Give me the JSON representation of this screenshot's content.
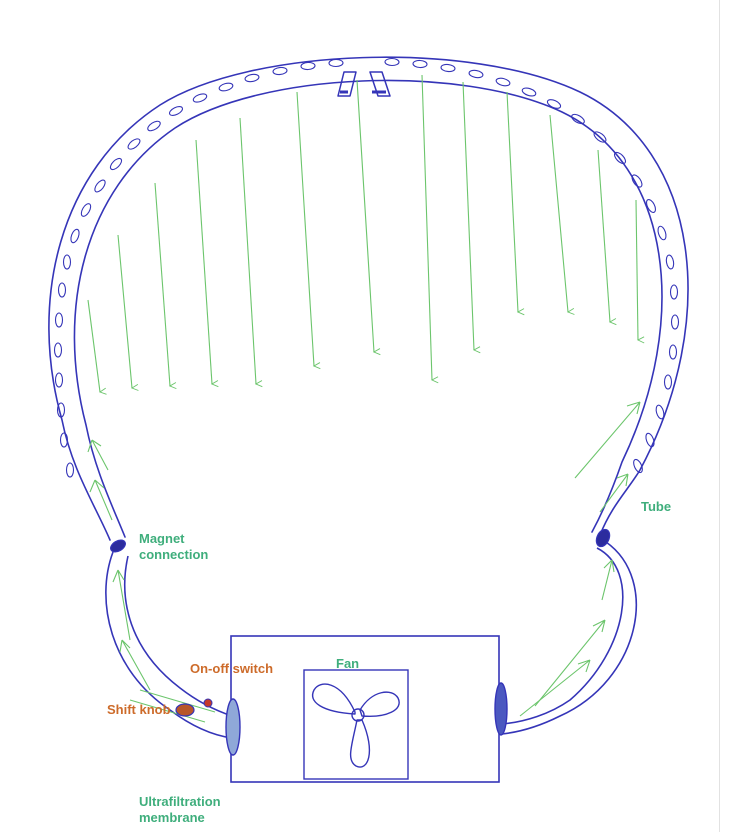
{
  "colors": {
    "ink": "#3535b8",
    "flow": "#6cc56c",
    "label_green": "#3fae7c",
    "label_orange": "#cd6b2a",
    "knob_fill": "#b8562a"
  },
  "labels": {
    "magnet": [
      "Magnet",
      "connection"
    ],
    "tube": "Tube",
    "fan": "Fan",
    "switch": "On-off switch",
    "knob": "Shift knob",
    "ultrafiltration": [
      "Ultrafiltration",
      "membrane"
    ]
  },
  "icons": {
    "fan": "fan-icon",
    "nozzle": "nozzle-icon"
  }
}
